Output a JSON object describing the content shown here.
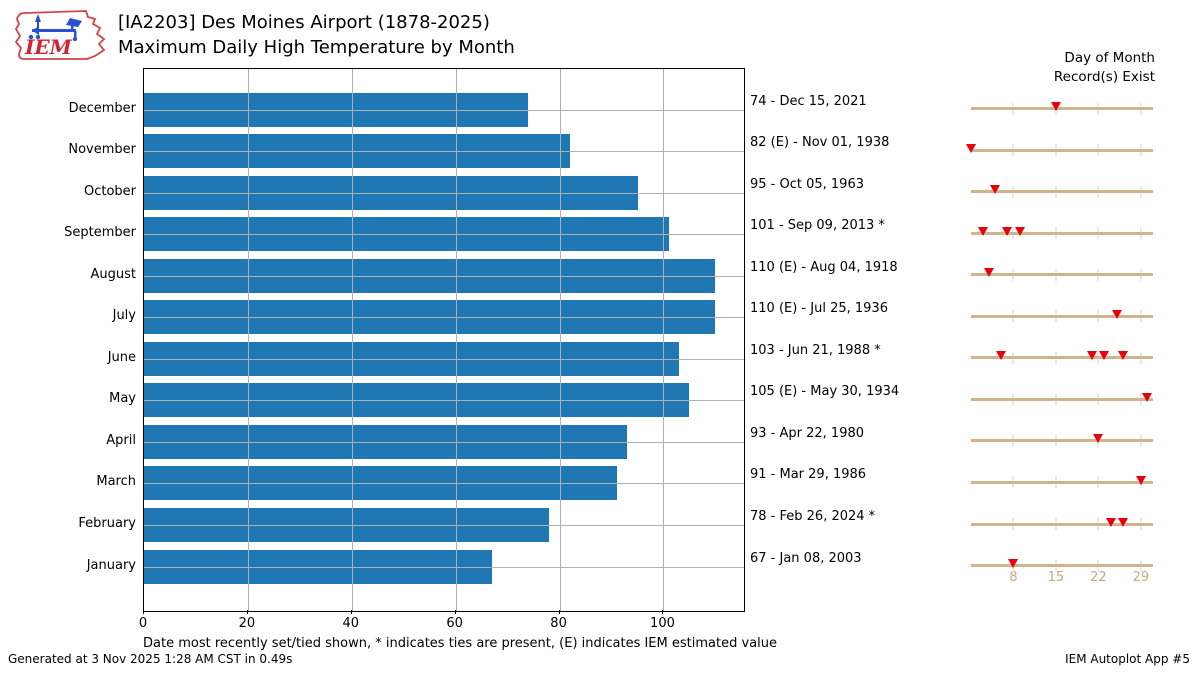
{
  "header": {
    "title_line1": "[IA2203] Des Moines Airport (1878-2025)",
    "title_line2": "Maximum Daily High Temperature by Month",
    "logo_text": "IEM"
  },
  "chart_data": {
    "type": "bar",
    "orientation": "horizontal",
    "title": "[IA2203] Des Moines Airport (1878-2025) Maximum Daily High Temperature by Month",
    "categories": [
      "December",
      "November",
      "October",
      "September",
      "August",
      "July",
      "June",
      "May",
      "April",
      "March",
      "February",
      "January"
    ],
    "values": [
      74,
      82,
      95,
      101,
      110,
      110,
      103,
      105,
      93,
      91,
      78,
      67
    ],
    "record_labels": [
      "74 - Dec 15, 2021",
      "82 (E) - Nov 01, 1938",
      "95 - Oct 05, 1963",
      "101 - Sep 09, 2013 *",
      "110 (E) - Aug 04, 1918",
      "110 (E) - Jul 25, 1936",
      "103 - Jun 21, 1988 *",
      "105 (E) - May 30, 1934",
      "93 - Apr 22, 1980",
      "91 - Mar 29, 1986",
      "78 - Feb 26, 2024 *",
      "67 - Jan 08, 2003"
    ],
    "record_days": [
      [
        15
      ],
      [
        1
      ],
      [
        5
      ],
      [
        3,
        7,
        9
      ],
      [
        4
      ],
      [
        25
      ],
      [
        6,
        21,
        23,
        26
      ],
      [
        30
      ],
      [
        22
      ],
      [
        29
      ],
      [
        24,
        26
      ],
      [
        8
      ]
    ],
    "x_ticks": [
      0,
      20,
      40,
      60,
      80,
      100
    ],
    "xlim": [
      0,
      115.5
    ],
    "xlabel": "Date most recently set/tied shown, * indicates ties are present, (E) indicates IEM estimated value",
    "grid": "on",
    "right_panel_title": [
      "Day of Month",
      "Record(s) Exist"
    ],
    "day_axis_ticks": [
      8,
      15,
      22,
      29
    ],
    "day_axis_range": [
      1,
      31
    ],
    "colors": {
      "bar": "#1f77b4",
      "marker": "#e8000b",
      "strip": "#d2b48c",
      "strip_tick": "#e8e8e8",
      "grid": "#b0b0b0",
      "day_label": "#c9a97c"
    }
  },
  "footer": {
    "generated": "Generated at 3 Nov 2025 1:28 AM CST in 0.49s",
    "app": "IEM Autoplot App #5"
  }
}
